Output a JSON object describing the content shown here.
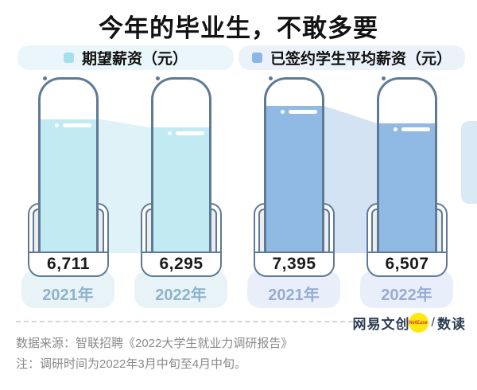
{
  "title": "今年的毕业生，不敢多要",
  "legend": {
    "expected": {
      "label": "期望薪资（元）",
      "swatch_color": "#a3e0ec"
    },
    "signed": {
      "label": "已签约学生平均薪资（元）",
      "swatch_color": "#8cb6e4"
    }
  },
  "chart_data": {
    "type": "bar",
    "title": "今年的毕业生，不敢多要",
    "categories": [
      "2021年",
      "2022年"
    ],
    "series": [
      {
        "name": "期望薪资（元）",
        "values": [
          6711,
          6295
        ],
        "color": "#c2eaf2"
      },
      {
        "name": "已签约学生平均薪资（元）",
        "values": [
          7395,
          6507
        ],
        "color": "#90bae4"
      }
    ],
    "unit": "元",
    "ylim": [
      0,
      8800
    ],
    "legend_position": "top",
    "grid": false
  },
  "bars": [
    {
      "value_label": "6,711",
      "year": "2021年"
    },
    {
      "value_label": "6,295",
      "year": "2022年"
    },
    {
      "value_label": "7,395",
      "year": "2021年"
    },
    {
      "value_label": "6,507",
      "year": "2022年"
    }
  ],
  "footer": {
    "source": "数据来源：智联招聘《2022大学生就业力调研报告》",
    "note": "注：调研时间为2022年3月中旬至4月中旬。"
  },
  "logo": {
    "main": "网易文创",
    "badge": "NetEase",
    "slash": "/",
    "sub": "数读"
  },
  "colors": {
    "outline": "#5f7a95",
    "cyan_liquid": "#c2eaf2",
    "cyan_bridge": "#def2f8",
    "blue_liquid": "#90bae4",
    "blue_bridge": "#d3e3f4",
    "badge_yellow": "#ffe812"
  }
}
